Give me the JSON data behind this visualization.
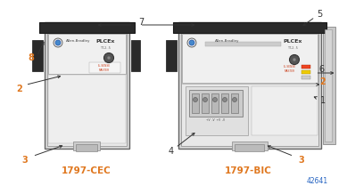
{
  "bg_color": "#ffffff",
  "label_color_orange": "#E07820",
  "label_color_blue": "#2060C0",
  "label_color_black": "#333333",
  "device1_label": "1797-CEC",
  "device2_label": "1797-BIC",
  "catalog_num": "42641",
  "fig_w": 3.89,
  "fig_h": 2.09,
  "dpi": 100
}
